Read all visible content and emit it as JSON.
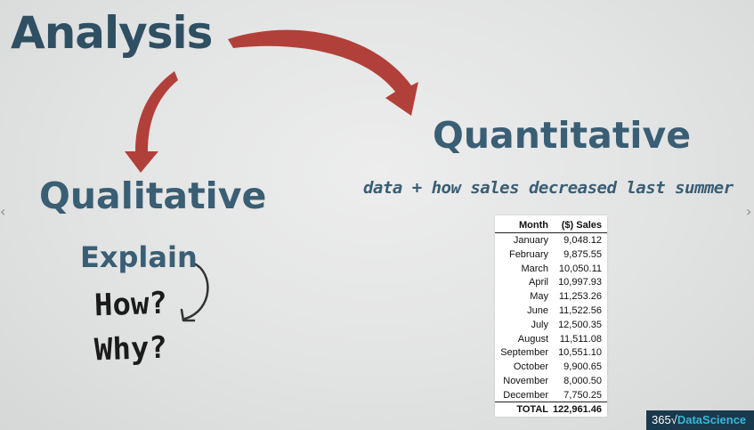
{
  "diagram": {
    "title": "Analysis",
    "branch_quantitative": "Quantitative",
    "branch_qualitative": "Qualitative",
    "quantitative_caption": "data + how sales decreased last summer",
    "qualitative_caption": "Explain",
    "questions": [
      "How?",
      "Why?"
    ],
    "arrow_color": "#b2403a",
    "text_color": "#3a5e74"
  },
  "sales_table": {
    "headers": [
      "Month",
      "($) Sales"
    ],
    "rows": [
      {
        "month": "January",
        "sales": "9,048.12"
      },
      {
        "month": "February",
        "sales": "9,875.55"
      },
      {
        "month": "March",
        "sales": "10,050.11"
      },
      {
        "month": "April",
        "sales": "10,997.93"
      },
      {
        "month": "May",
        "sales": "11,253.26"
      },
      {
        "month": "June",
        "sales": "11,522.56"
      },
      {
        "month": "July",
        "sales": "12,500.35"
      },
      {
        "month": "August",
        "sales": "11,511.08"
      },
      {
        "month": "September",
        "sales": "10,551.10"
      },
      {
        "month": "October",
        "sales": "9,900.65"
      },
      {
        "month": "November",
        "sales": "8,000.50"
      },
      {
        "month": "December",
        "sales": "7,750.25"
      }
    ],
    "total_label": "TOTAL",
    "total_value": "122,961.46"
  },
  "branding": {
    "logo_number": "365",
    "logo_mark": "√",
    "logo_text": "DataScience",
    "brand_color": "#19394d",
    "accent_color": "#37b7d6"
  },
  "navigation": {
    "prev_icon": "chevron-left-icon",
    "next_icon": "chevron-right-icon"
  }
}
